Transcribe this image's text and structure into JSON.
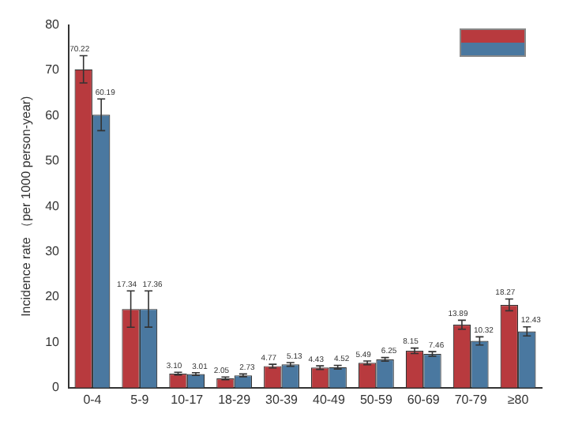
{
  "chart_data": {
    "type": "bar",
    "ylabel": "Incidence rate （per 1000 person-year)",
    "categories": [
      "0-4",
      "5-9",
      "10-17",
      "18-29",
      "30-39",
      "40-49",
      "50-59",
      "60-69",
      "70-79",
      "≥80"
    ],
    "series": [
      {
        "color": "#b83a3e",
        "values": [
          70.22,
          17.34,
          3.1,
          2.05,
          4.77,
          4.43,
          5.49,
          8.15,
          13.89,
          18.27
        ],
        "errors": [
          3,
          4,
          0.3,
          0.3,
          0.4,
          0.4,
          0.4,
          0.6,
          1,
          1.3
        ],
        "value_labels": [
          "70.22",
          "17.34",
          "3.10",
          "2.05",
          "4.77",
          "4.43",
          "5.49",
          "8.15",
          "13.89",
          "18.27"
        ]
      },
      {
        "color": "#4a78a0",
        "values": [
          60.19,
          17.36,
          3.01,
          2.73,
          5.13,
          4.52,
          6.25,
          7.46,
          10.32,
          12.43
        ],
        "errors": [
          3.5,
          4,
          0.3,
          0.3,
          0.4,
          0.4,
          0.4,
          0.5,
          0.9,
          1
        ],
        "value_labels": [
          "60.19",
          "17.36",
          "3.01",
          "2.73",
          "5.13",
          "4.52",
          "6.25",
          "7.46",
          "10.32",
          "12.43"
        ]
      }
    ],
    "ylim": [
      0,
      80
    ],
    "yticks": [
      0,
      10,
      20,
      30,
      40,
      50,
      60,
      70,
      80
    ],
    "grid": false
  }
}
